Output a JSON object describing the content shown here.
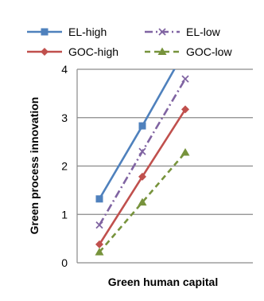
{
  "chart_data": {
    "type": "line",
    "xlabel": "Green human capital",
    "ylabel": "Green process innovation",
    "ylim": [
      0,
      4
    ],
    "yticks": [
      "0",
      "1",
      "2",
      "3",
      "4"
    ],
    "grid": "horizontal",
    "legend_position": "top",
    "x": [
      0,
      1,
      2
    ],
    "series": [
      {
        "name": "EL-high",
        "values": [
          1.32,
          2.83,
          4.4
        ],
        "color": "#4F81BD",
        "dash": "solid",
        "marker": "square"
      },
      {
        "name": "EL-low",
        "values": [
          0.78,
          2.3,
          3.8
        ],
        "color": "#8064A2",
        "dash": "dashdot",
        "marker": "x"
      },
      {
        "name": "GOC-high",
        "values": [
          0.38,
          1.78,
          3.17
        ],
        "color": "#C0504D",
        "dash": "solid",
        "marker": "diamond"
      },
      {
        "name": "GOC-low",
        "values": [
          0.22,
          1.25,
          2.28
        ],
        "color": "#77933C",
        "dash": "dash",
        "marker": "triangle"
      }
    ]
  }
}
